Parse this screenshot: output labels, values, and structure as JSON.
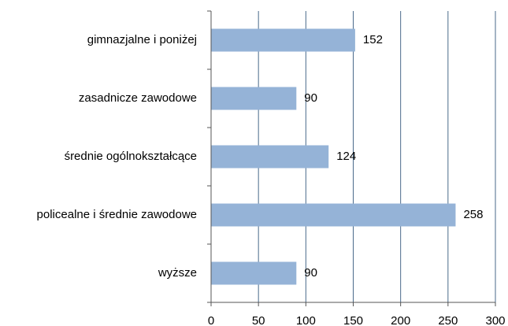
{
  "chart_data": {
    "type": "bar",
    "orientation": "horizontal",
    "categories": [
      "gimnazjalne i poniżej",
      "zasadnicze zawodowe",
      "średnie ogólnokształcące",
      "policealne i średnie zawodowe",
      "wyższe"
    ],
    "values": [
      152,
      90,
      124,
      258,
      90
    ],
    "color": "#95b3d7",
    "xlim": [
      0,
      300
    ],
    "xticks": [
      0,
      50,
      100,
      150,
      200,
      250,
      300
    ],
    "grid": true
  }
}
